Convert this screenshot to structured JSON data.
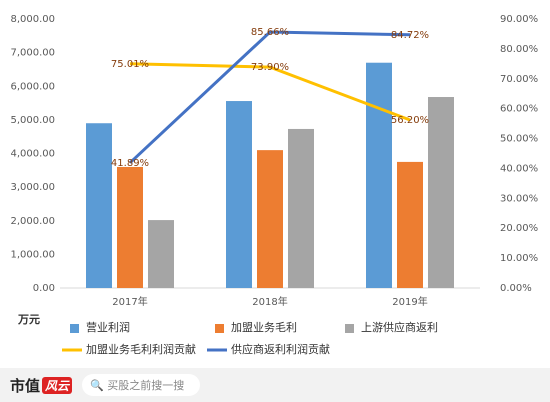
{
  "chart_data": {
    "type": "combo",
    "y_label": "万元",
    "categories": [
      "2017年",
      "2018年",
      "2019年"
    ],
    "series": [
      {
        "name": "营业利润",
        "type": "bar",
        "color": "#5b9bd5",
        "values": [
          4900,
          5560,
          6700
        ]
      },
      {
        "name": "加盟业务毛利",
        "type": "bar",
        "color": "#ed7d31",
        "values": [
          3600,
          4100,
          3750
        ]
      },
      {
        "name": "上游供应商返利",
        "type": "bar",
        "color": "#a5a5a5",
        "values": [
          2020,
          4730,
          5680
        ]
      },
      {
        "name": "加盟业务毛利利润贡献",
        "type": "line",
        "axis": "y2",
        "color": "#ffc000",
        "values": [
          75.01,
          73.9,
          56.2
        ],
        "value_labels": [
          "75.01%",
          "73.90%",
          "56.20%"
        ]
      },
      {
        "name": "供应商返利利润贡献",
        "type": "line",
        "axis": "y2",
        "color": "#4472c4",
        "values": [
          41.89,
          85.66,
          84.72
        ],
        "value_labels": [
          "41.89%",
          "85.66%",
          "84.72%"
        ]
      }
    ],
    "ylim": [
      0,
      8000
    ],
    "yticks": [
      {
        "value": 0,
        "label": "0.00"
      },
      {
        "value": 1000,
        "label": "1,000.00"
      },
      {
        "value": 2000,
        "label": "2,000.00"
      },
      {
        "value": 3000,
        "label": "3,000.00"
      },
      {
        "value": 4000,
        "label": "4,000.00"
      },
      {
        "value": 5000,
        "label": "5,000.00"
      },
      {
        "value": 6000,
        "label": "6,000.00"
      },
      {
        "value": 7000,
        "label": "7,000.00"
      },
      {
        "value": 8000,
        "label": "8,000.00"
      }
    ],
    "y2lim": [
      0,
      90
    ],
    "y2ticks": [
      {
        "value": 0,
        "label": "0.00%"
      },
      {
        "value": 10,
        "label": "10.00%"
      },
      {
        "value": 20,
        "label": "20.00%"
      },
      {
        "value": 30,
        "label": "30.00%"
      },
      {
        "value": 40,
        "label": "40.00%"
      },
      {
        "value": 50,
        "label": "50.00%"
      },
      {
        "value": 60,
        "label": "60.00%"
      },
      {
        "value": 70,
        "label": "70.00%"
      },
      {
        "value": 80,
        "label": "80.00%"
      },
      {
        "value": 90,
        "label": "90.00%"
      }
    ],
    "grid": false
  },
  "footer": {
    "logo_left": "市值",
    "logo_right": "风云",
    "search": "买股之前搜一搜"
  }
}
